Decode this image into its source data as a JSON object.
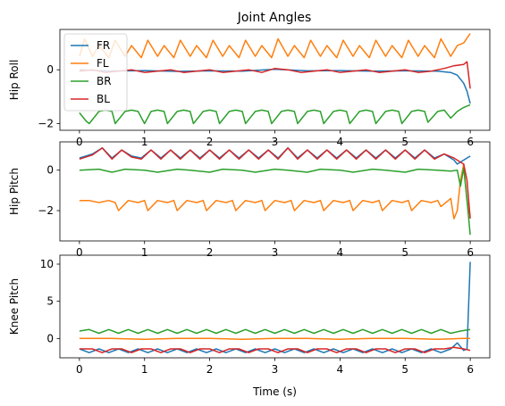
{
  "colors": {
    "FR": "#1f77b4",
    "FL": "#ff7f0e",
    "BR": "#2ca02c",
    "BL": "#d62728"
  },
  "chart_data": [
    {
      "type": "line",
      "title": "Joint Angles",
      "xlabel": "",
      "ylabel": "Hip Roll",
      "xlim": [
        -0.3,
        6.3
      ],
      "ylim": [
        -2.25,
        1.5
      ],
      "xticks": [
        0,
        1,
        2,
        3,
        4,
        5,
        6
      ],
      "yticks": [
        -2,
        0
      ],
      "legend": {
        "position": "top-left",
        "entries": [
          "FR",
          "FL",
          "BR",
          "BL"
        ]
      },
      "grid": false,
      "series": [
        {
          "name": "FR",
          "color": "#1f77b4",
          "x": [
            0,
            0.5,
            1,
            1.5,
            2,
            2.5,
            3,
            3.5,
            4,
            4.5,
            5,
            5.5,
            5.7,
            5.8,
            5.9,
            5.95,
            6.0
          ],
          "y": [
            0.0,
            -0.05,
            -0.03,
            -0.06,
            -0.04,
            -0.05,
            0.02,
            -0.04,
            -0.03,
            -0.05,
            -0.04,
            -0.05,
            -0.1,
            -0.2,
            -0.5,
            -0.8,
            -1.25
          ]
        },
        {
          "name": "FL",
          "color": "#ff7f0e",
          "x": [
            0,
            0.08,
            0.2,
            0.3,
            0.45,
            0.55,
            0.7,
            0.8,
            0.95,
            1.05,
            1.2,
            1.3,
            1.45,
            1.55,
            1.7,
            1.8,
            1.95,
            2.05,
            2.2,
            2.3,
            2.45,
            2.55,
            2.7,
            2.8,
            2.95,
            3.05,
            3.2,
            3.3,
            3.45,
            3.55,
            3.7,
            3.8,
            3.95,
            4.05,
            4.2,
            4.3,
            4.45,
            4.55,
            4.7,
            4.8,
            4.95,
            5.05,
            5.2,
            5.3,
            5.45,
            5.55,
            5.7,
            5.8,
            5.9,
            6.0
          ],
          "y": [
            0.5,
            1.15,
            0.5,
            0.9,
            0.45,
            1.1,
            0.5,
            0.9,
            0.45,
            1.1,
            0.5,
            0.9,
            0.45,
            1.1,
            0.5,
            0.9,
            0.45,
            1.1,
            0.5,
            0.9,
            0.45,
            1.1,
            0.5,
            0.9,
            0.45,
            1.15,
            0.5,
            0.9,
            0.45,
            1.1,
            0.5,
            0.9,
            0.45,
            1.1,
            0.5,
            0.9,
            0.45,
            1.1,
            0.5,
            0.9,
            0.45,
            1.1,
            0.5,
            0.9,
            0.45,
            1.15,
            0.5,
            0.9,
            1.0,
            1.35
          ]
        },
        {
          "name": "BR",
          "color": "#2ca02c",
          "x": [
            0,
            0.1,
            0.15,
            0.3,
            0.4,
            0.5,
            0.55,
            0.7,
            0.8,
            0.9,
            1.0,
            1.1,
            1.2,
            1.3,
            1.35,
            1.5,
            1.6,
            1.7,
            1.75,
            1.9,
            2.0,
            2.1,
            2.15,
            2.3,
            2.4,
            2.5,
            2.55,
            2.7,
            2.8,
            2.9,
            2.95,
            3.1,
            3.2,
            3.3,
            3.35,
            3.5,
            3.6,
            3.7,
            3.75,
            3.9,
            4.0,
            4.1,
            4.15,
            4.3,
            4.4,
            4.5,
            4.55,
            4.7,
            4.8,
            4.9,
            4.95,
            5.1,
            5.2,
            5.3,
            5.35,
            5.5,
            5.6,
            5.7,
            5.8,
            5.9,
            6.0
          ],
          "y": [
            -1.6,
            -1.9,
            -2.0,
            -1.55,
            -1.5,
            -1.55,
            -2.0,
            -1.55,
            -1.5,
            -1.55,
            -2.0,
            -1.55,
            -1.5,
            -1.55,
            -2.0,
            -1.55,
            -1.5,
            -1.55,
            -2.0,
            -1.55,
            -1.5,
            -1.55,
            -2.0,
            -1.55,
            -1.5,
            -1.55,
            -2.0,
            -1.55,
            -1.5,
            -1.55,
            -2.0,
            -1.55,
            -1.5,
            -1.55,
            -2.0,
            -1.55,
            -1.5,
            -1.55,
            -2.0,
            -1.55,
            -1.5,
            -1.55,
            -2.0,
            -1.55,
            -1.5,
            -1.55,
            -2.0,
            -1.55,
            -1.5,
            -1.55,
            -2.0,
            -1.55,
            -1.5,
            -1.55,
            -1.95,
            -1.55,
            -1.5,
            -1.8,
            -1.55,
            -1.4,
            -1.3
          ]
        },
        {
          "name": "BL",
          "color": "#d62728",
          "x": [
            0,
            0.2,
            0.4,
            0.6,
            0.8,
            1.0,
            1.2,
            1.4,
            1.6,
            1.8,
            2.0,
            2.2,
            2.4,
            2.6,
            2.8,
            3.0,
            3.2,
            3.4,
            3.6,
            3.8,
            4.0,
            4.2,
            4.4,
            4.6,
            4.8,
            5.0,
            5.2,
            5.4,
            5.6,
            5.75,
            5.9,
            5.95,
            6.0
          ],
          "y": [
            -0.05,
            0.0,
            -0.1,
            -0.05,
            0.0,
            -0.1,
            -0.05,
            0.0,
            -0.1,
            -0.05,
            0.0,
            -0.1,
            -0.05,
            0.0,
            -0.1,
            0.05,
            0.0,
            -0.1,
            -0.05,
            0.0,
            -0.1,
            -0.05,
            0.0,
            -0.1,
            -0.05,
            0.0,
            -0.1,
            -0.05,
            0.05,
            0.15,
            0.2,
            0.3,
            -0.7
          ]
        }
      ]
    },
    {
      "type": "line",
      "title": "",
      "xlabel": "",
      "ylabel": "Hip Pitch",
      "xlim": [
        -0.3,
        6.3
      ],
      "ylim": [
        -3.5,
        1.4
      ],
      "xticks": [
        0,
        1,
        2,
        3,
        4,
        5,
        6
      ],
      "yticks": [
        -2,
        0
      ],
      "grid": false,
      "series": [
        {
          "name": "FR",
          "color": "#1f77b4",
          "x": [
            0,
            0.2,
            0.35,
            0.5,
            0.65,
            0.8,
            0.95,
            1.1,
            1.25,
            1.4,
            1.55,
            1.7,
            1.85,
            2.0,
            2.15,
            2.3,
            2.45,
            2.6,
            2.75,
            2.9,
            3.05,
            3.2,
            3.35,
            3.5,
            3.65,
            3.8,
            3.95,
            4.1,
            4.25,
            4.4,
            4.55,
            4.7,
            4.85,
            5.0,
            5.15,
            5.3,
            5.45,
            5.6,
            5.75,
            5.8,
            5.9,
            6.0
          ],
          "y": [
            0.6,
            0.8,
            1.1,
            0.6,
            1.0,
            0.7,
            0.6,
            1.0,
            0.6,
            1.0,
            0.6,
            1.0,
            0.6,
            1.0,
            0.6,
            1.0,
            0.6,
            1.0,
            0.6,
            1.0,
            0.6,
            1.1,
            0.6,
            1.0,
            0.6,
            1.0,
            0.6,
            1.0,
            0.6,
            1.0,
            0.6,
            1.0,
            0.6,
            1.0,
            0.6,
            1.0,
            0.6,
            0.8,
            0.5,
            0.3,
            0.5,
            0.7
          ]
        },
        {
          "name": "FL",
          "color": "#ff7f0e",
          "x": [
            0,
            0.15,
            0.3,
            0.45,
            0.55,
            0.6,
            0.75,
            0.9,
            1.0,
            1.05,
            1.2,
            1.35,
            1.45,
            1.5,
            1.65,
            1.8,
            1.9,
            1.95,
            2.1,
            2.25,
            2.35,
            2.4,
            2.55,
            2.7,
            2.8,
            2.85,
            3.0,
            3.15,
            3.25,
            3.3,
            3.45,
            3.6,
            3.7,
            3.75,
            3.9,
            4.05,
            4.15,
            4.2,
            4.35,
            4.5,
            4.6,
            4.65,
            4.8,
            4.95,
            5.05,
            5.1,
            5.25,
            5.4,
            5.5,
            5.55,
            5.7,
            5.75,
            5.8,
            5.85,
            5.9,
            5.95,
            6.0
          ],
          "y": [
            -1.5,
            -1.5,
            -1.6,
            -1.5,
            -1.6,
            -2.0,
            -1.5,
            -1.6,
            -1.5,
            -2.0,
            -1.5,
            -1.6,
            -1.5,
            -2.0,
            -1.5,
            -1.6,
            -1.5,
            -2.0,
            -1.5,
            -1.6,
            -1.5,
            -2.0,
            -1.5,
            -1.6,
            -1.5,
            -2.0,
            -1.5,
            -1.6,
            -1.5,
            -2.0,
            -1.5,
            -1.6,
            -1.5,
            -2.0,
            -1.5,
            -1.6,
            -1.5,
            -2.0,
            -1.5,
            -1.6,
            -1.5,
            -2.0,
            -1.5,
            -1.6,
            -1.5,
            -2.0,
            -1.5,
            -1.6,
            -1.5,
            -1.8,
            -1.4,
            -2.4,
            -2.0,
            -0.5,
            0.3,
            -1.5,
            -2.3
          ]
        },
        {
          "name": "BR",
          "color": "#2ca02c",
          "x": [
            0,
            0.3,
            0.5,
            0.7,
            1.0,
            1.2,
            1.5,
            1.7,
            2.0,
            2.2,
            2.5,
            2.7,
            3.0,
            3.2,
            3.5,
            3.7,
            4.0,
            4.2,
            4.5,
            4.7,
            5.0,
            5.2,
            5.5,
            5.7,
            5.8,
            5.85,
            5.9,
            5.95,
            6.0
          ],
          "y": [
            0.0,
            0.05,
            -0.1,
            0.05,
            0.0,
            -0.1,
            0.05,
            0.0,
            -0.1,
            0.05,
            0.0,
            -0.1,
            0.05,
            0.0,
            -0.1,
            0.05,
            0.0,
            -0.1,
            0.05,
            0.0,
            -0.1,
            0.05,
            0.0,
            -0.05,
            0.0,
            -0.8,
            0.1,
            -1.5,
            -3.2
          ]
        },
        {
          "name": "BL",
          "color": "#d62728",
          "x": [
            0,
            0.2,
            0.35,
            0.5,
            0.65,
            0.8,
            0.95,
            1.1,
            1.25,
            1.4,
            1.55,
            1.7,
            1.85,
            2.0,
            2.15,
            2.3,
            2.45,
            2.6,
            2.75,
            2.9,
            3.05,
            3.2,
            3.35,
            3.5,
            3.65,
            3.8,
            3.95,
            4.1,
            4.25,
            4.4,
            4.55,
            4.7,
            4.85,
            5.0,
            5.15,
            5.3,
            5.45,
            5.6,
            5.75,
            5.85,
            5.9,
            5.95,
            6.0
          ],
          "y": [
            0.55,
            0.75,
            1.1,
            0.55,
            1.0,
            0.65,
            0.55,
            1.0,
            0.55,
            1.0,
            0.55,
            1.0,
            0.55,
            1.0,
            0.55,
            1.0,
            0.55,
            1.0,
            0.55,
            1.0,
            0.55,
            1.1,
            0.55,
            1.0,
            0.55,
            1.0,
            0.55,
            1.0,
            0.55,
            1.0,
            0.55,
            1.0,
            0.55,
            1.0,
            0.55,
            1.0,
            0.55,
            0.8,
            0.6,
            0.4,
            0.3,
            -0.5,
            -2.4
          ]
        }
      ]
    },
    {
      "type": "line",
      "title": "",
      "xlabel": "Time (s)",
      "ylabel": "Knee Pitch",
      "xlim": [
        -0.3,
        6.3
      ],
      "ylim": [
        -2.6,
        11.2
      ],
      "xticks": [
        0,
        1,
        2,
        3,
        4,
        5,
        6
      ],
      "yticks": [
        0,
        5,
        10
      ],
      "grid": false,
      "series": [
        {
          "name": "FR",
          "color": "#1f77b4",
          "x": [
            0,
            0.15,
            0.3,
            0.45,
            0.6,
            0.75,
            0.9,
            1.05,
            1.2,
            1.35,
            1.5,
            1.65,
            1.8,
            1.95,
            2.1,
            2.25,
            2.4,
            2.55,
            2.7,
            2.85,
            3.0,
            3.15,
            3.3,
            3.45,
            3.6,
            3.75,
            3.9,
            4.05,
            4.2,
            4.35,
            4.5,
            4.65,
            4.8,
            4.95,
            5.1,
            5.25,
            5.4,
            5.55,
            5.7,
            5.8,
            5.9,
            5.95,
            6.0
          ],
          "y": [
            -1.4,
            -1.9,
            -1.4,
            -1.9,
            -1.4,
            -1.9,
            -1.4,
            -1.9,
            -1.4,
            -1.9,
            -1.4,
            -1.9,
            -1.4,
            -1.9,
            -1.4,
            -1.9,
            -1.4,
            -1.9,
            -1.4,
            -1.9,
            -1.4,
            -1.9,
            -1.4,
            -1.9,
            -1.4,
            -1.9,
            -1.4,
            -1.9,
            -1.4,
            -1.9,
            -1.4,
            -1.9,
            -1.4,
            -1.9,
            -1.4,
            -1.9,
            -1.4,
            -1.9,
            -1.4,
            -0.6,
            -1.6,
            -1.4,
            10.3
          ]
        },
        {
          "name": "FL",
          "color": "#ff7f0e",
          "x": [
            0,
            0.5,
            1,
            1.5,
            2,
            2.5,
            3,
            3.5,
            4,
            4.5,
            5,
            5.5,
            5.9,
            6.0
          ],
          "y": [
            0.0,
            0.0,
            -0.1,
            0.0,
            0.0,
            -0.1,
            0.0,
            0.0,
            -0.1,
            0.0,
            0.0,
            -0.1,
            0.0,
            0.0
          ]
        },
        {
          "name": "BR",
          "color": "#2ca02c",
          "x": [
            0,
            0.15,
            0.3,
            0.45,
            0.6,
            0.75,
            0.9,
            1.05,
            1.2,
            1.35,
            1.5,
            1.65,
            1.8,
            1.95,
            2.1,
            2.25,
            2.4,
            2.55,
            2.7,
            2.85,
            3.0,
            3.15,
            3.3,
            3.45,
            3.6,
            3.75,
            3.9,
            4.05,
            4.2,
            4.35,
            4.5,
            4.65,
            4.8,
            4.95,
            5.1,
            5.25,
            5.4,
            5.55,
            5.7,
            5.85,
            6.0
          ],
          "y": [
            1.0,
            1.2,
            0.7,
            1.2,
            0.7,
            1.2,
            0.7,
            1.2,
            0.7,
            1.2,
            0.7,
            1.2,
            0.7,
            1.2,
            0.7,
            1.2,
            0.7,
            1.2,
            0.7,
            1.2,
            0.7,
            1.2,
            0.7,
            1.2,
            0.7,
            1.2,
            0.7,
            1.2,
            0.7,
            1.2,
            0.7,
            1.2,
            0.7,
            1.2,
            0.7,
            1.2,
            0.7,
            1.2,
            0.7,
            1.0,
            1.2
          ]
        },
        {
          "name": "BL",
          "color": "#d62728",
          "x": [
            0,
            0.2,
            0.35,
            0.5,
            0.65,
            0.8,
            0.95,
            1.1,
            1.25,
            1.4,
            1.55,
            1.7,
            1.85,
            2.0,
            2.15,
            2.3,
            2.45,
            2.6,
            2.75,
            2.9,
            3.05,
            3.2,
            3.35,
            3.5,
            3.65,
            3.8,
            3.95,
            4.1,
            4.25,
            4.4,
            4.55,
            4.7,
            4.85,
            5.0,
            5.15,
            5.3,
            5.45,
            5.6,
            5.75,
            5.9,
            6.0
          ],
          "y": [
            -1.4,
            -1.4,
            -1.9,
            -1.4,
            -1.4,
            -1.9,
            -1.4,
            -1.4,
            -1.9,
            -1.4,
            -1.4,
            -1.9,
            -1.4,
            -1.4,
            -1.9,
            -1.4,
            -1.4,
            -1.9,
            -1.4,
            -1.4,
            -1.9,
            -1.4,
            -1.4,
            -1.9,
            -1.4,
            -1.4,
            -1.9,
            -1.4,
            -1.4,
            -1.9,
            -1.4,
            -1.4,
            -1.9,
            -1.4,
            -1.4,
            -1.9,
            -1.4,
            -1.4,
            -1.2,
            -1.4,
            -1.6
          ]
        }
      ]
    }
  ]
}
